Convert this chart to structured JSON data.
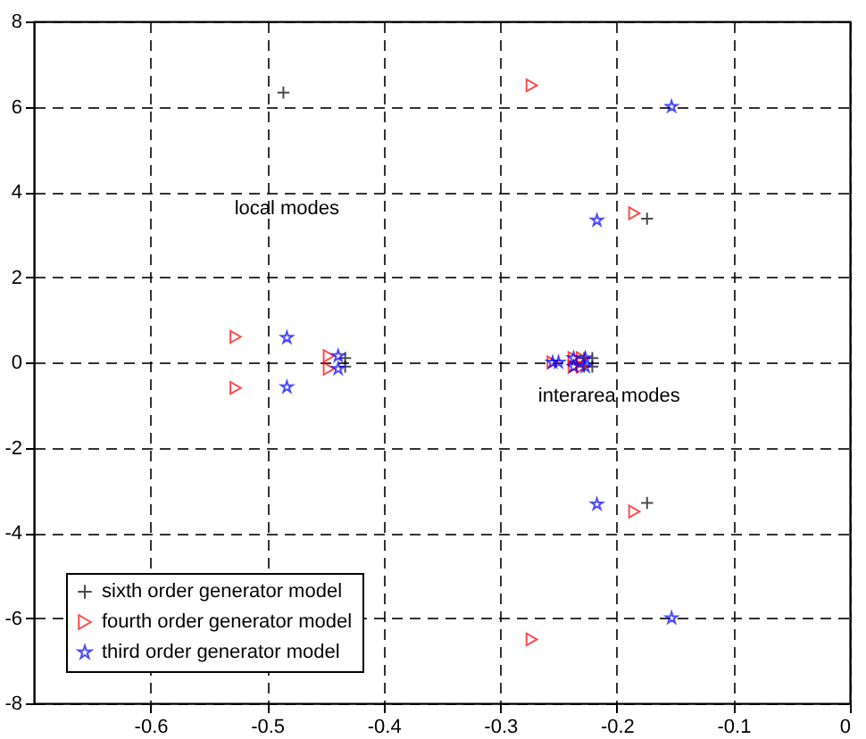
{
  "chart_data": {
    "type": "scatter",
    "xlim": [
      -0.7,
      0
    ],
    "ylim": [
      -8,
      8
    ],
    "xticks": [
      -0.6,
      -0.5,
      -0.4,
      -0.3,
      -0.2,
      -0.1,
      0
    ],
    "yticks": [
      -8,
      -6,
      -4,
      -2,
      0,
      2,
      4,
      6,
      8
    ],
    "grid": true,
    "legend": "bottom left",
    "annotations": [
      "local modes",
      "interarea modes"
    ],
    "series": [
      {
        "name": "sixth order generator model",
        "color": "#000000",
        "marker": "cross",
        "x": [
          -0.486,
          -0.433,
          -0.433,
          -0.221,
          -0.221,
          -0.228,
          -0.228,
          -0.174,
          -0.174
        ],
        "values": [
          6.33,
          0.1,
          -0.1,
          0.1,
          -0.1,
          0.1,
          -0.1,
          3.37,
          -3.3
        ]
      },
      {
        "name": "fourth order generator model",
        "color": "#ff0000",
        "marker": "triangle",
        "x": [
          -0.273,
          -0.273,
          -0.527,
          -0.527,
          -0.447,
          -0.447,
          -0.185,
          -0.185,
          -0.255,
          -0.237,
          -0.237,
          -0.23,
          -0.23
        ],
        "values": [
          6.5,
          -6.5,
          0.6,
          -0.6,
          0.15,
          -0.15,
          3.5,
          -3.5,
          0,
          0.1,
          -0.1,
          0.1,
          -0.1
        ]
      },
      {
        "name": "third order generator model",
        "color": "#0000ff",
        "marker": "star",
        "x": [
          -0.483,
          -0.483,
          -0.439,
          -0.439,
          -0.153,
          -0.153,
          -0.217,
          -0.217,
          -0.255,
          -0.25,
          -0.237,
          -0.237,
          -0.227,
          -0.227
        ],
        "values": [
          0.58,
          -0.58,
          0.15,
          -0.15,
          6.0,
          -6.0,
          3.33,
          -3.33,
          0,
          0,
          0.1,
          -0.1,
          0.1,
          -0.1
        ]
      }
    ]
  }
}
